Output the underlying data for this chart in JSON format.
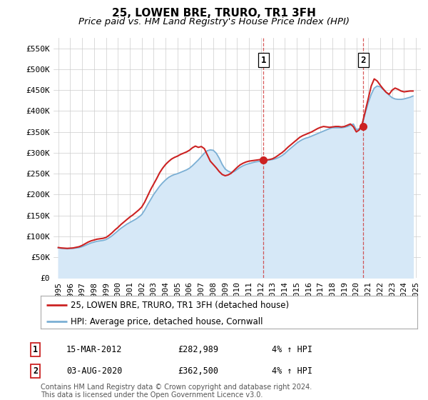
{
  "title": "25, LOWEN BRE, TRURO, TR1 3FH",
  "subtitle": "Price paid vs. HM Land Registry's House Price Index (HPI)",
  "ylim": [
    0,
    575000
  ],
  "yticks": [
    0,
    50000,
    100000,
    150000,
    200000,
    250000,
    300000,
    350000,
    400000,
    450000,
    500000,
    550000
  ],
  "ytick_labels": [
    "£0",
    "£50K",
    "£100K",
    "£150K",
    "£200K",
    "£250K",
    "£300K",
    "£350K",
    "£400K",
    "£450K",
    "£500K",
    "£550K"
  ],
  "xlim_start": 1994.6,
  "xlim_end": 2025.4,
  "xticks": [
    1995,
    1996,
    1997,
    1998,
    1999,
    2000,
    2001,
    2002,
    2003,
    2004,
    2005,
    2006,
    2007,
    2008,
    2009,
    2010,
    2011,
    2012,
    2013,
    2014,
    2015,
    2016,
    2017,
    2018,
    2019,
    2020,
    2021,
    2022,
    2023,
    2024,
    2025
  ],
  "hpi_years": [
    1995.0,
    1995.25,
    1995.5,
    1995.75,
    1996.0,
    1996.25,
    1996.5,
    1996.75,
    1997.0,
    1997.25,
    1997.5,
    1997.75,
    1998.0,
    1998.25,
    1998.5,
    1998.75,
    1999.0,
    1999.25,
    1999.5,
    1999.75,
    2000.0,
    2000.25,
    2000.5,
    2000.75,
    2001.0,
    2001.25,
    2001.5,
    2001.75,
    2002.0,
    2002.25,
    2002.5,
    2002.75,
    2003.0,
    2003.25,
    2003.5,
    2003.75,
    2004.0,
    2004.25,
    2004.5,
    2004.75,
    2005.0,
    2005.25,
    2005.5,
    2005.75,
    2006.0,
    2006.25,
    2006.5,
    2006.75,
    2007.0,
    2007.25,
    2007.5,
    2007.75,
    2008.0,
    2008.25,
    2008.5,
    2008.75,
    2009.0,
    2009.25,
    2009.5,
    2009.75,
    2010.0,
    2010.25,
    2010.5,
    2010.75,
    2011.0,
    2011.25,
    2011.5,
    2011.75,
    2012.0,
    2012.25,
    2012.5,
    2012.75,
    2013.0,
    2013.25,
    2013.5,
    2013.75,
    2014.0,
    2014.25,
    2014.5,
    2014.75,
    2015.0,
    2015.25,
    2015.5,
    2015.75,
    2016.0,
    2016.25,
    2016.5,
    2016.75,
    2017.0,
    2017.25,
    2017.5,
    2017.75,
    2018.0,
    2018.25,
    2018.5,
    2018.75,
    2019.0,
    2019.25,
    2019.5,
    2019.75,
    2020.0,
    2020.25,
    2020.5,
    2020.75,
    2021.0,
    2021.25,
    2021.5,
    2021.75,
    2022.0,
    2022.25,
    2022.5,
    2022.75,
    2023.0,
    2023.25,
    2023.5,
    2023.75,
    2024.0,
    2024.25,
    2024.5,
    2024.75
  ],
  "hpi_values": [
    72000,
    71000,
    70500,
    70000,
    70500,
    71000,
    72000,
    73000,
    75000,
    78000,
    81000,
    84000,
    86000,
    88000,
    89000,
    90000,
    92000,
    96000,
    101000,
    107000,
    113000,
    119000,
    124000,
    129000,
    133000,
    137000,
    141000,
    146000,
    152000,
    163000,
    176000,
    188000,
    200000,
    210000,
    220000,
    228000,
    235000,
    241000,
    245000,
    248000,
    250000,
    253000,
    256000,
    259000,
    263000,
    269000,
    276000,
    283000,
    291000,
    299000,
    305000,
    307000,
    306000,
    299000,
    287000,
    272000,
    261000,
    256000,
    253000,
    255000,
    260000,
    265000,
    269000,
    272000,
    274000,
    276000,
    278000,
    279000,
    280000,
    281000,
    282000,
    283000,
    284000,
    286000,
    289000,
    293000,
    298000,
    305000,
    311000,
    317000,
    323000,
    328000,
    332000,
    335000,
    337000,
    340000,
    343000,
    346000,
    349000,
    352000,
    355000,
    358000,
    360000,
    360000,
    360000,
    360000,
    361000,
    363000,
    366000,
    369000,
    355000,
    358000,
    370000,
    395000,
    420000,
    440000,
    455000,
    460000,
    458000,
    452000,
    445000,
    438000,
    432000,
    429000,
    428000,
    428000,
    429000,
    431000,
    433000,
    436000
  ],
  "red_years": [
    1995.0,
    1995.25,
    1995.5,
    1995.75,
    1996.0,
    1996.25,
    1996.5,
    1996.75,
    1997.0,
    1997.25,
    1997.5,
    1997.75,
    1998.0,
    1998.25,
    1998.5,
    1998.75,
    1999.0,
    1999.25,
    1999.5,
    1999.75,
    2000.0,
    2000.25,
    2000.5,
    2000.75,
    2001.0,
    2001.25,
    2001.5,
    2001.75,
    2002.0,
    2002.25,
    2002.5,
    2002.75,
    2003.0,
    2003.25,
    2003.5,
    2003.75,
    2004.0,
    2004.25,
    2004.5,
    2004.75,
    2005.0,
    2005.25,
    2005.5,
    2005.75,
    2006.0,
    2006.25,
    2006.5,
    2006.75,
    2007.0,
    2007.25,
    2007.5,
    2007.75,
    2008.0,
    2008.25,
    2008.5,
    2008.75,
    2009.0,
    2009.25,
    2009.5,
    2009.75,
    2010.0,
    2010.25,
    2010.5,
    2010.75,
    2011.0,
    2011.25,
    2011.5,
    2011.75,
    2012.0,
    2012.25,
    2012.5,
    2012.75,
    2013.0,
    2013.25,
    2013.5,
    2013.75,
    2014.0,
    2014.25,
    2014.5,
    2014.75,
    2015.0,
    2015.25,
    2015.5,
    2015.75,
    2016.0,
    2016.25,
    2016.5,
    2016.75,
    2017.0,
    2017.25,
    2017.5,
    2017.75,
    2018.0,
    2018.25,
    2018.5,
    2018.75,
    2019.0,
    2019.25,
    2019.5,
    2019.75,
    2020.0,
    2020.25,
    2020.5,
    2020.75,
    2021.0,
    2021.25,
    2021.5,
    2021.75,
    2022.0,
    2022.25,
    2022.5,
    2022.75,
    2023.0,
    2023.25,
    2023.5,
    2023.75,
    2024.0,
    2024.25,
    2024.5,
    2024.75
  ],
  "red_values": [
    73000,
    72000,
    71500,
    71000,
    71500,
    72000,
    73500,
    75000,
    78000,
    82000,
    86000,
    89000,
    91000,
    93000,
    94000,
    95000,
    97000,
    102000,
    108000,
    115000,
    121000,
    128000,
    134000,
    140000,
    146000,
    151000,
    157000,
    163000,
    170000,
    182000,
    197000,
    212000,
    225000,
    238000,
    252000,
    263000,
    272000,
    279000,
    285000,
    289000,
    292000,
    296000,
    299000,
    302000,
    306000,
    312000,
    316000,
    313000,
    315000,
    310000,
    295000,
    280000,
    272000,
    264000,
    255000,
    248000,
    245000,
    247000,
    251000,
    258000,
    265000,
    271000,
    275000,
    278000,
    280000,
    281000,
    282000,
    283000,
    284000,
    283000,
    283000,
    284000,
    286000,
    290000,
    295000,
    300000,
    306000,
    313000,
    319000,
    325000,
    331000,
    337000,
    341000,
    344000,
    347000,
    350000,
    354000,
    358000,
    361000,
    363000,
    362000,
    361000,
    362000,
    363000,
    363000,
    362000,
    363000,
    366000,
    369000,
    362500,
    350000,
    355000,
    370000,
    400000,
    430000,
    460000,
    477000,
    472000,
    462000,
    453000,
    445000,
    440000,
    450000,
    455000,
    452000,
    448000,
    446000,
    447000,
    448000,
    448000
  ],
  "price_paid_years": [
    2012.21,
    2020.58
  ],
  "price_paid_values": [
    282989,
    362500
  ],
  "vline1_x": 2012.21,
  "vline2_x": 2020.58,
  "legend_line1": "25, LOWEN BRE, TRURO, TR1 3FH (detached house)",
  "legend_line2": "HPI: Average price, detached house, Cornwall",
  "table_data": [
    [
      "1",
      "15-MAR-2012",
      "£282,989",
      "4% ↑ HPI"
    ],
    [
      "2",
      "03-AUG-2020",
      "£362,500",
      "4% ↑ HPI"
    ]
  ],
  "footnote": "Contains HM Land Registry data © Crown copyright and database right 2024.\nThis data is licensed under the Open Government Licence v3.0.",
  "red_line_color": "#cc2222",
  "blue_line_color": "#7bafd4",
  "blue_fill_color": "#d6e8f7",
  "vline_color": "#cc2222",
  "title_fontsize": 11,
  "subtitle_fontsize": 9.5,
  "tick_fontsize": 8,
  "legend_fontsize": 8.5
}
